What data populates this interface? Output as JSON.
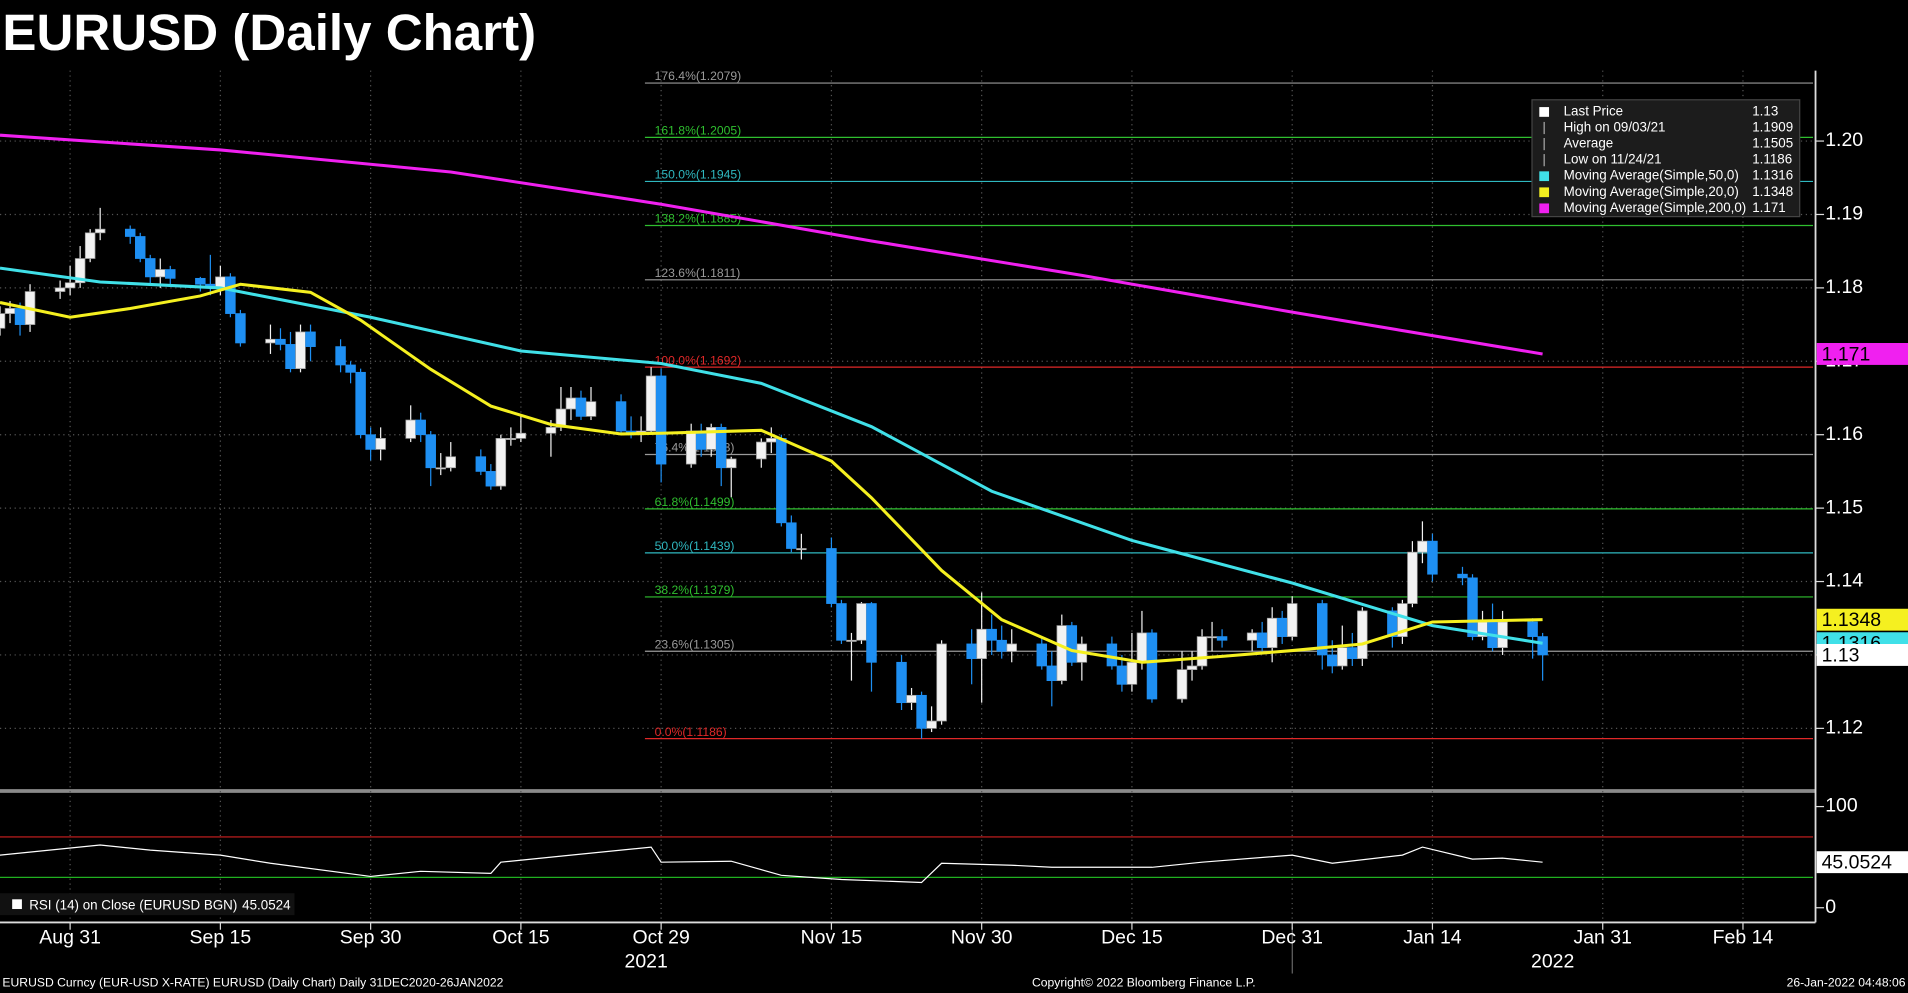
{
  "title": "EURUSD (Daily Chart)",
  "chart_data": {
    "type": "candlestick",
    "x": [
      "2021-08-24",
      "2021-08-25",
      "2021-08-26",
      "2021-08-27",
      "2021-08-30",
      "2021-08-31",
      "2021-09-01",
      "2021-09-02",
      "2021-09-03",
      "2021-09-06",
      "2021-09-07",
      "2021-09-08",
      "2021-09-09",
      "2021-09-10",
      "2021-09-13",
      "2021-09-14",
      "2021-09-15",
      "2021-09-16",
      "2021-09-17",
      "2021-09-20",
      "2021-09-21",
      "2021-09-22",
      "2021-09-23",
      "2021-09-24",
      "2021-09-27",
      "2021-09-28",
      "2021-09-29",
      "2021-09-30",
      "2021-10-01",
      "2021-10-04",
      "2021-10-05",
      "2021-10-06",
      "2021-10-07",
      "2021-10-08",
      "2021-10-11",
      "2021-10-12",
      "2021-10-13",
      "2021-10-14",
      "2021-10-15",
      "2021-10-18",
      "2021-10-19",
      "2021-10-20",
      "2021-10-21",
      "2021-10-22",
      "2021-10-25",
      "2021-10-26",
      "2021-10-27",
      "2021-10-28",
      "2021-10-29",
      "2021-11-01",
      "2021-11-02",
      "2021-11-03",
      "2021-11-04",
      "2021-11-05",
      "2021-11-08",
      "2021-11-09",
      "2021-11-10",
      "2021-11-11",
      "2021-11-12",
      "2021-11-15",
      "2021-11-16",
      "2021-11-17",
      "2021-11-18",
      "2021-11-19",
      "2021-11-22",
      "2021-11-23",
      "2021-11-24",
      "2021-11-25",
      "2021-11-26",
      "2021-11-29",
      "2021-11-30",
      "2021-12-01",
      "2021-12-02",
      "2021-12-03",
      "2021-12-06",
      "2021-12-07",
      "2021-12-08",
      "2021-12-09",
      "2021-12-10",
      "2021-12-13",
      "2021-12-14",
      "2021-12-15",
      "2021-12-16",
      "2021-12-17",
      "2021-12-20",
      "2021-12-21",
      "2021-12-22",
      "2021-12-23",
      "2021-12-24",
      "2021-12-27",
      "2021-12-28",
      "2021-12-29",
      "2021-12-30",
      "2021-12-31",
      "2022-01-03",
      "2022-01-04",
      "2022-01-05",
      "2022-01-06",
      "2022-01-07",
      "2022-01-10",
      "2022-01-11",
      "2022-01-12",
      "2022-01-13",
      "2022-01-14",
      "2022-01-17",
      "2022-01-18",
      "2022-01-19",
      "2022-01-20",
      "2022-01-21",
      "2022-01-24",
      "2022-01-25"
    ],
    "open": [
      1.1745,
      1.1765,
      1.1772,
      1.175,
      1.1795,
      1.18,
      1.1807,
      1.184,
      1.1875,
      1.188,
      1.187,
      1.184,
      1.1815,
      1.1825,
      1.1813,
      1.1805,
      1.18,
      1.1815,
      1.1765,
      1.1725,
      1.173,
      1.1723,
      1.169,
      1.174,
      1.172,
      1.1695,
      1.1685,
      1.16,
      1.158,
      1.1595,
      1.162,
      1.16,
      1.1555,
      1.1555,
      1.157,
      1.155,
      1.153,
      1.1595,
      1.1595,
      1.1602,
      1.161,
      1.1635,
      1.165,
      1.1625,
      1.1645,
      1.1605,
      1.16,
      1.1605,
      1.168,
      1.156,
      1.1605,
      1.158,
      1.161,
      1.1555,
      1.1567,
      1.159,
      1.1595,
      1.148,
      1.1445,
      1.1445,
      1.137,
      1.132,
      1.132,
      1.137,
      1.129,
      1.1235,
      1.1245,
      1.12,
      1.121,
      1.1315,
      1.1295,
      1.1335,
      1.132,
      1.1305,
      1.1315,
      1.1285,
      1.1265,
      1.134,
      1.129,
      1.1315,
      1.1285,
      1.126,
      1.129,
      1.133,
      1.124,
      1.128,
      1.1285,
      1.1325,
      1.1325,
      1.132,
      1.133,
      1.131,
      1.135,
      1.1325,
      1.137,
      1.13,
      1.1285,
      1.131,
      1.1295,
      1.136,
      1.1325,
      1.137,
      1.144,
      1.1455,
      1.141,
      1.1405,
      1.1325,
      1.1345,
      1.131,
      1.1345,
      1.1325
    ],
    "high": [
      1.1775,
      1.1782,
      1.178,
      1.1805,
      1.181,
      1.183,
      1.1857,
      1.188,
      1.1909,
      1.1885,
      1.1875,
      1.1845,
      1.184,
      1.183,
      1.1815,
      1.1845,
      1.183,
      1.182,
      1.177,
      1.175,
      1.1745,
      1.174,
      1.175,
      1.175,
      1.173,
      1.17,
      1.169,
      1.161,
      1.161,
      1.164,
      1.163,
      1.1605,
      1.1575,
      1.159,
      1.158,
      1.156,
      1.16,
      1.161,
      1.1625,
      1.162,
      1.1665,
      1.1665,
      1.166,
      1.1665,
      1.1655,
      1.1625,
      1.1625,
      1.1692,
      1.169,
      1.1615,
      1.1615,
      1.1615,
      1.1615,
      1.157,
      1.1595,
      1.161,
      1.16,
      1.149,
      1.1465,
      1.146,
      1.1375,
      1.133,
      1.1372,
      1.1372,
      1.13,
      1.1255,
      1.125,
      1.123,
      1.132,
      1.1335,
      1.1385,
      1.1355,
      1.134,
      1.1335,
      1.1325,
      1.1305,
      1.1355,
      1.1345,
      1.1325,
      1.1325,
      1.13,
      1.133,
      1.136,
      1.1335,
      1.1305,
      1.1305,
      1.1335,
      1.1345,
      1.1335,
      1.1335,
      1.1345,
      1.1365,
      1.136,
      1.138,
      1.1375,
      1.132,
      1.134,
      1.133,
      1.1365,
      1.1365,
      1.1375,
      1.1455,
      1.1482,
      1.1465,
      1.142,
      1.141,
      1.136,
      1.137,
      1.136,
      1.135,
      1.133
    ],
    "low": [
      1.1735,
      1.1752,
      1.1735,
      1.174,
      1.1785,
      1.179,
      1.18,
      1.1835,
      1.1865,
      1.186,
      1.1835,
      1.1805,
      1.18,
      1.1805,
      1.1795,
      1.179,
      1.179,
      1.176,
      1.172,
      1.171,
      1.1715,
      1.1685,
      1.1685,
      1.17,
      1.1685,
      1.167,
      1.1595,
      1.1565,
      1.1565,
      1.159,
      1.159,
      1.153,
      1.1545,
      1.155,
      1.1545,
      1.1525,
      1.1525,
      1.1585,
      1.159,
      1.157,
      1.1605,
      1.162,
      1.162,
      1.162,
      1.16,
      1.1595,
      1.159,
      1.16,
      1.1535,
      1.1555,
      1.157,
      1.157,
      1.153,
      1.1515,
      1.1555,
      1.1575,
      1.1475,
      1.144,
      1.143,
      1.1365,
      1.1315,
      1.1265,
      1.1315,
      1.125,
      1.1225,
      1.1225,
      1.1186,
      1.1195,
      1.1205,
      1.126,
      1.1235,
      1.13,
      1.1295,
      1.129,
      1.128,
      1.123,
      1.126,
      1.1285,
      1.1265,
      1.128,
      1.125,
      1.125,
      1.128,
      1.1235,
      1.1235,
      1.1265,
      1.128,
      1.1305,
      1.131,
      1.1305,
      1.1305,
      1.129,
      1.1315,
      1.132,
      1.128,
      1.1275,
      1.128,
      1.1285,
      1.1285,
      1.131,
      1.1315,
      1.1365,
      1.1425,
      1.14,
      1.1395,
      1.132,
      1.132,
      1.1305,
      1.13,
      1.1295,
      1.1265
    ],
    "close": [
      1.1765,
      1.1772,
      1.175,
      1.1795,
      1.18,
      1.1807,
      1.184,
      1.1875,
      1.188,
      1.187,
      1.184,
      1.1815,
      1.1825,
      1.1813,
      1.1805,
      1.18,
      1.1815,
      1.1765,
      1.1725,
      1.173,
      1.1723,
      1.169,
      1.174,
      1.172,
      1.1695,
      1.1685,
      1.16,
      1.158,
      1.1595,
      1.162,
      1.16,
      1.1555,
      1.1555,
      1.157,
      1.155,
      1.153,
      1.1595,
      1.1595,
      1.1602,
      1.161,
      1.1635,
      1.165,
      1.1625,
      1.1645,
      1.1605,
      1.16,
      1.1605,
      1.168,
      1.156,
      1.1605,
      1.158,
      1.161,
      1.1555,
      1.1567,
      1.159,
      1.1595,
      1.148,
      1.1445,
      1.1445,
      1.137,
      1.132,
      1.132,
      1.137,
      1.129,
      1.1235,
      1.1245,
      1.12,
      1.121,
      1.1315,
      1.1295,
      1.1335,
      1.132,
      1.1305,
      1.1315,
      1.1285,
      1.1265,
      1.134,
      1.129,
      1.1315,
      1.1285,
      1.126,
      1.129,
      1.133,
      1.124,
      1.128,
      1.1285,
      1.1325,
      1.1325,
      1.132,
      1.133,
      1.131,
      1.135,
      1.1325,
      1.137,
      1.13,
      1.1285,
      1.131,
      1.1295,
      1.136,
      1.1325,
      1.137,
      1.144,
      1.1455,
      1.141,
      1.1405,
      1.1325,
      1.1345,
      1.131,
      1.1345,
      1.1325,
      1.13
    ],
    "up_color": "#f2f2f2",
    "down_color": "#1e8ff2",
    "xlim": [
      "2021-08-24",
      "2022-02-21"
    ],
    "xticks": [
      {
        "value": "2021-08-31",
        "label": "Aug 31"
      },
      {
        "value": "2021-09-15",
        "label": "Sep 15"
      },
      {
        "value": "2021-09-30",
        "label": "Sep 30"
      },
      {
        "value": "2021-10-15",
        "label": "Oct 15"
      },
      {
        "value": "2021-10-29",
        "label": "Oct 29"
      },
      {
        "value": "2021-11-15",
        "label": "Nov 15"
      },
      {
        "value": "2021-11-30",
        "label": "Nov 30"
      },
      {
        "value": "2021-12-15",
        "label": "Dec 15"
      },
      {
        "value": "2021-12-31",
        "label": "Dec 31"
      },
      {
        "value": "2022-01-14",
        "label": "Jan 14"
      },
      {
        "value": "2022-01-31",
        "label": "Jan 31"
      },
      {
        "value": "2022-02-14",
        "label": "Feb 14"
      }
    ],
    "years": [
      "2021",
      "2022"
    ],
    "ylim": [
      1.1118,
      1.2096
    ],
    "yticks": [
      1.12,
      1.13,
      1.14,
      1.15,
      1.16,
      1.17,
      1.18,
      1.19,
      {
        "value": 1.2,
        "label": "1.20"
      }
    ],
    "grid": true,
    "series": [
      {
        "name": "Moving Average(Simple,50,0)",
        "color": "#40e0e8",
        "last": 1.1316,
        "x": [
          "2021-08-24",
          "2021-09-03",
          "2021-09-15",
          "2021-09-30",
          "2021-10-15",
          "2021-10-29",
          "2021-11-08",
          "2021-11-19",
          "2021-12-01",
          "2021-12-15",
          "2021-12-31",
          "2022-01-14",
          "2022-01-25"
        ],
        "values": [
          1.1827,
          1.1808,
          1.18,
          1.176,
          1.1714,
          1.1697,
          1.167,
          1.1611,
          1.1523,
          1.1456,
          1.1398,
          1.134,
          1.1316
        ]
      },
      {
        "name": "Moving Average(Simple,20,0)",
        "color": "#f5f020",
        "last": 1.1348,
        "x": [
          "2021-08-24",
          "2021-08-31",
          "2021-09-06",
          "2021-09-13",
          "2021-09-17",
          "2021-09-24",
          "2021-09-29",
          "2021-10-06",
          "2021-10-12",
          "2021-10-18",
          "2021-10-25",
          "2021-10-29",
          "2021-11-08",
          "2021-11-15",
          "2021-11-19",
          "2021-11-26",
          "2021-12-02",
          "2021-12-09",
          "2021-12-16",
          "2021-12-24",
          "2021-12-31",
          "2022-01-07",
          "2022-01-14",
          "2022-01-25"
        ],
        "values": [
          1.178,
          1.176,
          1.1772,
          1.1789,
          1.1805,
          1.1794,
          1.1756,
          1.1689,
          1.1639,
          1.1614,
          1.1601,
          1.1602,
          1.1606,
          1.1564,
          1.1514,
          1.1415,
          1.1348,
          1.1306,
          1.129,
          1.1298,
          1.1306,
          1.1315,
          1.1345,
          1.1348
        ]
      },
      {
        "name": "Moving Average(Simple,200,0)",
        "color": "#f020f0",
        "last": 1.171,
        "x": [
          "2021-08-24",
          "2021-09-15",
          "2021-10-08",
          "2021-10-29",
          "2021-11-19",
          "2021-12-10",
          "2021-12-31",
          "2022-01-25"
        ],
        "values": [
          1.2008,
          1.1988,
          1.1958,
          1.1914,
          1.1864,
          1.1817,
          1.1767,
          1.171
        ]
      }
    ],
    "fib_levels": [
      {
        "label": "176.4%(1.2079)",
        "value": 1.2079,
        "color": "#9a9a9a"
      },
      {
        "label": "161.8%(1.2005)",
        "value": 1.2005,
        "color": "#2fbf2f"
      },
      {
        "label": "150.0%(1.1945)",
        "value": 1.1945,
        "color": "#2fb8c0"
      },
      {
        "label": "138.2%(1.1885)",
        "value": 1.1885,
        "color": "#2fbf2f"
      },
      {
        "label": "123.6%(1.1811)",
        "value": 1.1811,
        "color": "#9a9a9a"
      },
      {
        "label": "100.0%(1.1692)",
        "value": 1.1692,
        "color": "#e02828"
      },
      {
        "label": "76.4%(1.1573)",
        "value": 1.1573,
        "color": "#9a9a9a"
      },
      {
        "label": "61.8%(1.1499)",
        "value": 1.1499,
        "color": "#2fbf2f"
      },
      {
        "label": "50.0%(1.1439)",
        "value": 1.1439,
        "color": "#2fb8c0"
      },
      {
        "label": "38.2%(1.1379)",
        "value": 1.1379,
        "color": "#2fbf2f"
      },
      {
        "label": "23.6%(1.1305)",
        "value": 1.1305,
        "color": "#9a9a9a"
      },
      {
        "label": "0.0%(1.1186)",
        "value": 1.1186,
        "color": "#e02828"
      }
    ],
    "legend": {
      "entries": [
        {
          "name": "Last Price",
          "value": 1.13
        },
        {
          "name": "High on 09/03/21",
          "value": 1.1909
        },
        {
          "name": "Average",
          "value": 1.1505
        },
        {
          "name": "Low on 11/24/21",
          "value": 1.1186
        }
      ]
    },
    "rsi": {
      "label": "RSI (14)  on Close (EURUSD BGN)",
      "color": "#ffffff",
      "x": [
        "2021-08-24",
        "2021-09-03",
        "2021-09-08",
        "2021-09-15",
        "2021-09-20",
        "2021-09-30",
        "2021-10-05",
        "2021-10-12",
        "2021-10-13",
        "2021-10-20",
        "2021-10-28",
        "2021-10-29",
        "2021-11-05",
        "2021-11-10",
        "2021-11-16",
        "2021-11-24",
        "2021-11-26",
        "2021-12-03",
        "2021-12-07",
        "2021-12-17",
        "2021-12-22",
        "2021-12-31",
        "2022-01-04",
        "2022-01-11",
        "2022-01-13",
        "2022-01-18",
        "2022-01-21",
        "2022-01-25"
      ],
      "values": [
        52,
        62,
        57,
        52,
        44,
        31,
        36,
        34,
        45,
        52,
        60,
        45,
        46,
        32,
        28,
        25,
        44,
        42,
        40,
        40,
        45,
        52,
        44,
        52,
        60,
        48,
        49,
        45.0524
      ],
      "ylim": [
        -14.5,
        113
      ],
      "yticks": [
        0,
        100
      ],
      "levels": [
        {
          "value": 70,
          "color": "#d02020"
        },
        {
          "value": 30,
          "color": "#20b020"
        }
      ]
    }
  },
  "footer": {
    "left": "EURUSD Curncy (EUR-USD X-RATE) EURUSD (Daily Chart)  Daily 31DEC2020-26JAN2022",
    "center": "Copyright© 2022 Bloomberg Finance L.P.",
    "right": "26-Jan-2022 04:48:06"
  }
}
